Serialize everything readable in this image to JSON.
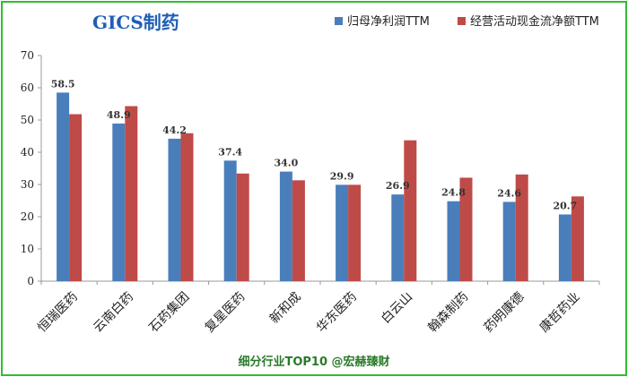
{
  "chart_data": {
    "type": "bar",
    "title": "GICS制药",
    "footer": "细分行业TOP10 @宏赫臻财",
    "categories": [
      "恒瑞医药",
      "云南白药",
      "石药集团",
      "复星医药",
      "新和成",
      "华东医药",
      "白云山",
      "翰森制药",
      "药明康德",
      "康哲药业"
    ],
    "series": [
      {
        "name": "归母净利润TTM",
        "color": "#4a7ebb",
        "values": [
          58.5,
          48.9,
          44.2,
          37.4,
          34.0,
          29.9,
          26.9,
          24.8,
          24.6,
          20.7
        ],
        "labels": [
          "58.5",
          "48.9",
          "44.2",
          "37.4",
          "34.0",
          "29.9",
          "26.9",
          "24.8",
          "24.6",
          "20.7"
        ]
      },
      {
        "name": "经营活动现金流净额TTM",
        "color": "#be4b48",
        "values": [
          51.8,
          54.3,
          45.9,
          33.4,
          31.3,
          29.9,
          43.7,
          32.1,
          33.1,
          26.3
        ]
      }
    ],
    "yticks": [
      0,
      10,
      20,
      30,
      40,
      50,
      60,
      70
    ],
    "ylim": [
      0,
      70
    ],
    "grid": false,
    "legend": "top-right"
  }
}
